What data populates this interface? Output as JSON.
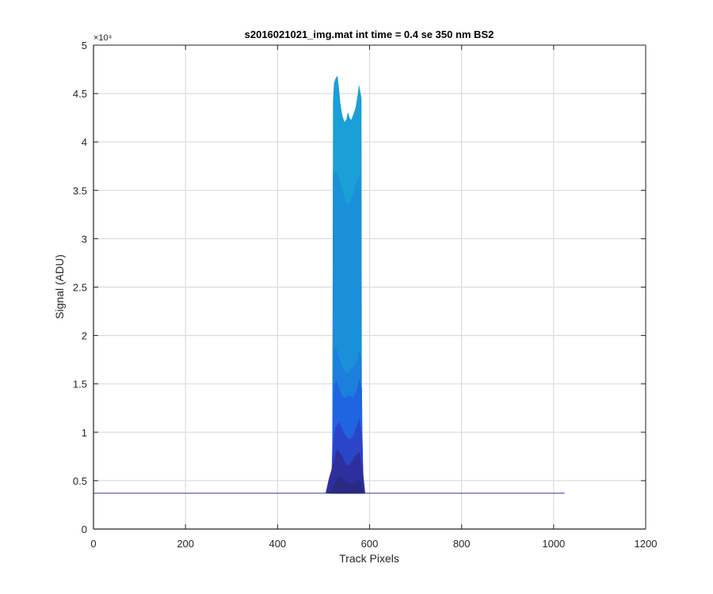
{
  "chart_data": {
    "type": "area",
    "title": "s2016021021_img.mat int time = 0.4 se  350 nm BS2",
    "xlabel": "Track Pixels",
    "ylabel": "Signal (ADU)",
    "xlim": [
      0,
      1200
    ],
    "ylim": [
      0,
      50000
    ],
    "xticks": [
      0,
      200,
      400,
      600,
      800,
      1000,
      1200
    ],
    "xtick_labels": [
      "0",
      "200",
      "400",
      "600",
      "800",
      "1000",
      "1200"
    ],
    "yticks": [
      0,
      5000,
      10000,
      15000,
      20000,
      25000,
      30000,
      35000,
      40000,
      45000,
      50000
    ],
    "ytick_labels": [
      "0",
      "0.5",
      "1",
      "1.5",
      "2",
      "2.5",
      "3",
      "3.5",
      "4",
      "4.5",
      "5"
    ],
    "y_exponent_label": "×10⁴",
    "grid": true,
    "baseline_value": 3700,
    "baseline_x_range": [
      0,
      1024
    ],
    "series": [
      {
        "color": "#1a9fd6",
        "x": [
          520,
          521,
          523,
          526,
          530,
          533,
          536,
          540,
          545,
          550,
          553,
          556,
          560,
          565,
          570,
          575,
          577,
          580,
          582,
          583
        ],
        "y": [
          3700,
          44000,
          46000,
          46500,
          46800,
          45500,
          44000,
          42800,
          42000,
          42300,
          43000,
          42500,
          42200,
          42800,
          43500,
          45000,
          45800,
          45000,
          44500,
          3700
        ]
      },
      {
        "color": "#1a90d8",
        "x": [
          519,
          521,
          530,
          540,
          550,
          560,
          570,
          580,
          583
        ],
        "y": [
          3700,
          37000,
          36800,
          35000,
          33500,
          33800,
          35500,
          36800,
          3700
        ]
      },
      {
        "color": "#1c7fde",
        "x": [
          519,
          522,
          526,
          530,
          540,
          550,
          560,
          570,
          574,
          578,
          582,
          584
        ],
        "y": [
          3700,
          18000,
          18800,
          18200,
          16800,
          16000,
          16500,
          17000,
          17500,
          18500,
          17500,
          3700
        ]
      },
      {
        "color": "#1f64e0",
        "x": [
          518,
          522,
          528,
          535,
          545,
          555,
          565,
          572,
          578,
          583,
          585
        ],
        "y": [
          3700,
          14800,
          15300,
          14200,
          13500,
          13800,
          13600,
          14200,
          15500,
          14500,
          3700
        ]
      },
      {
        "color": "#2a45c8",
        "x": [
          516,
          520,
          526,
          534,
          545,
          555,
          565,
          572,
          578,
          584,
          587
        ],
        "y": [
          3700,
          8500,
          10500,
          11000,
          9800,
          9200,
          9600,
          10600,
          11300,
          9500,
          3700
        ]
      },
      {
        "color": "#2d2f9e",
        "x": [
          505,
          512,
          520,
          530,
          540,
          550,
          560,
          570,
          578,
          585,
          590
        ],
        "y": [
          3700,
          5200,
          6500,
          8200,
          7500,
          6500,
          6800,
          7600,
          7900,
          6000,
          3700
        ]
      },
      {
        "color": "#2a2a82",
        "x": [
          508,
          520,
          535,
          550,
          565,
          578,
          588
        ],
        "y": [
          3700,
          4200,
          5500,
          4800,
          4600,
          5200,
          3700
        ]
      }
    ]
  }
}
